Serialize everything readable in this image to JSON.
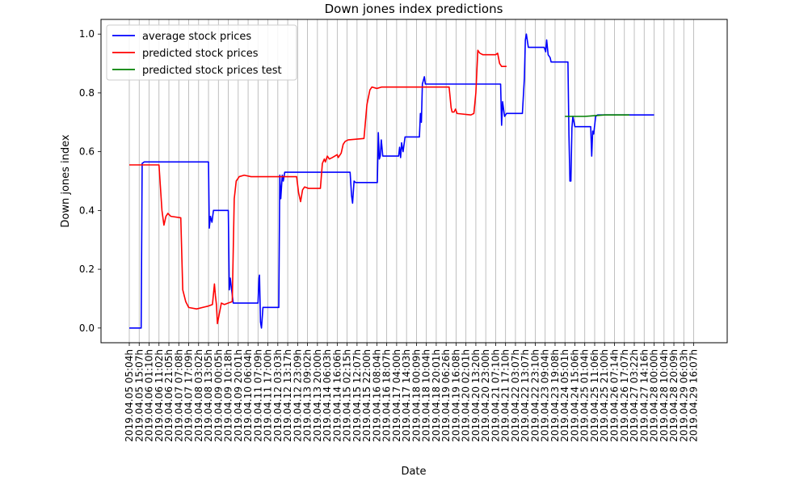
{
  "chart_data": {
    "type": "line",
    "title": "Down jones index predictions",
    "xlabel": "Date",
    "ylabel": "Down jones index",
    "ylim": [
      -0.05,
      1.05
    ],
    "yticks": [
      "0.0",
      "0.2",
      "0.4",
      "0.6",
      "0.8",
      "1.0"
    ],
    "ytick_values": [
      0.0,
      0.2,
      0.4,
      0.6,
      0.8,
      1.0
    ],
    "grid": "vertical",
    "legend_position": "top-left",
    "x_tick_labels": [
      "2019.04.05 05:04h",
      "2019.04.05 15:07h",
      "2019.04.06 01:10h",
      "2019.04.06 11:02h",
      "2019.04.06 21:05h",
      "2019.04.07 07:08h",
      "2019.04.07 17:09h",
      "2019.04.08 03:02h",
      "2019.04.08 13:05h",
      "2019.04.09 00:05h",
      "2019.04.09 10:18h",
      "2019.04.09 20:01h",
      "2019.04.10 06:04h",
      "2019.04.11 07:09h",
      "2019.04.11 17:00h",
      "2019.04.12 03:03h",
      "2019.04.12 13:17h",
      "2019.04.12 23:09h",
      "2019.04.13 09:02h",
      "2019.04.13 20:00h",
      "2019.04.14 06:03h",
      "2019.04.14 16:06h",
      "2019.04.15 02:15h",
      "2019.04.15 12:07h",
      "2019.04.15 22:00h",
      "2019.04.16 08:04h",
      "2019.04.16 18:07h",
      "2019.04.17 04:00h",
      "2019.04.17 14:03h",
      "2019.04.18 00:09h",
      "2019.04.18 10:04h",
      "2019.04.18 20:01h",
      "2019.04.19 06:26h",
      "2019.04.19 16:08h",
      "2019.04.20 02:01h",
      "2019.04.20 13:20h",
      "2019.04.20 23:00h",
      "2019.04.21 07:10h",
      "2019.04.21 17:10h",
      "2019.04.22 03:07h",
      "2019.04.22 13:07h",
      "2019.04.22 23:10h",
      "2019.04.23 09:04h",
      "2019.04.23 19:08h",
      "2019.04.24 05:01h",
      "2019.04.24 15:06h",
      "2019.04.25 01:04h",
      "2019.04.25 11:06h",
      "2019.04.25 21:00h",
      "2019.04.26 07:14h",
      "2019.04.26 17:07h",
      "2019.04.27 03:22h",
      "2019.04.27 14:16h",
      "2019.04.28 00:00h",
      "2019.04.28 10:04h",
      "2019.04.28 20:09h",
      "2019.04.29 06:03h",
      "2019.04.29 16:07h"
    ],
    "series": [
      {
        "name": "average stock prices",
        "color": "#0000ff",
        "points": [
          [
            0,
            0.0
          ],
          [
            1.2,
            0.0
          ],
          [
            1.3,
            0.56
          ],
          [
            1.5,
            0.565
          ],
          [
            2,
            0.565
          ],
          [
            8,
            0.565
          ],
          [
            8.08,
            0.34
          ],
          [
            8.2,
            0.38
          ],
          [
            8.35,
            0.36
          ],
          [
            8.5,
            0.4
          ],
          [
            10,
            0.4
          ],
          [
            10.1,
            0.13
          ],
          [
            10.2,
            0.17
          ],
          [
            10.3,
            0.14
          ],
          [
            10.5,
            0.085
          ],
          [
            13,
            0.085
          ],
          [
            13.1,
            0.17
          ],
          [
            13.15,
            0.18
          ],
          [
            13.25,
            0.02
          ],
          [
            13.35,
            0.0
          ],
          [
            13.5,
            0.07
          ],
          [
            15.1,
            0.07
          ],
          [
            15.2,
            0.52
          ],
          [
            15.3,
            0.44
          ],
          [
            15.45,
            0.52
          ],
          [
            15.55,
            0.5
          ],
          [
            15.7,
            0.53
          ],
          [
            22.3,
            0.53
          ],
          [
            22.45,
            0.45
          ],
          [
            22.55,
            0.425
          ],
          [
            22.7,
            0.5
          ],
          [
            22.85,
            0.495
          ],
          [
            25.05,
            0.495
          ],
          [
            25.15,
            0.665
          ],
          [
            25.25,
            0.575
          ],
          [
            25.35,
            0.585
          ],
          [
            25.45,
            0.64
          ],
          [
            25.6,
            0.585
          ],
          [
            27.2,
            0.585
          ],
          [
            27.3,
            0.615
          ],
          [
            27.4,
            0.58
          ],
          [
            27.5,
            0.63
          ],
          [
            27.65,
            0.6
          ],
          [
            27.85,
            0.65
          ],
          [
            29.3,
            0.65
          ],
          [
            29.4,
            0.73
          ],
          [
            29.5,
            0.7
          ],
          [
            29.6,
            0.83
          ],
          [
            29.8,
            0.855
          ],
          [
            29.9,
            0.83
          ],
          [
            37.5,
            0.83
          ],
          [
            37.6,
            0.69
          ],
          [
            37.7,
            0.77
          ],
          [
            37.9,
            0.72
          ],
          [
            38.1,
            0.73
          ],
          [
            39.7,
            0.73
          ],
          [
            39.9,
            0.85
          ],
          [
            40.0,
            0.98
          ],
          [
            40.1,
            1.0
          ],
          [
            40.3,
            0.955
          ],
          [
            41.9,
            0.955
          ],
          [
            42.05,
            0.94
          ],
          [
            42.15,
            0.98
          ],
          [
            42.3,
            0.93
          ],
          [
            42.5,
            0.92
          ],
          [
            42.6,
            0.905
          ],
          [
            44.3,
            0.905
          ],
          [
            44.4,
            0.66
          ],
          [
            44.5,
            0.5
          ],
          [
            44.6,
            0.5
          ],
          [
            44.7,
            0.68
          ],
          [
            44.8,
            0.72
          ],
          [
            45.0,
            0.685
          ],
          [
            46.6,
            0.685
          ],
          [
            46.7,
            0.585
          ],
          [
            46.8,
            0.67
          ],
          [
            46.9,
            0.66
          ],
          [
            47.1,
            0.72
          ],
          [
            47.3,
            0.725
          ],
          [
            53.0,
            0.725
          ]
        ]
      },
      {
        "name": "predicted stock prices",
        "color": "#ff0000",
        "points": [
          [
            0,
            0.555
          ],
          [
            3,
            0.555
          ],
          [
            3.3,
            0.4
          ],
          [
            3.5,
            0.35
          ],
          [
            3.7,
            0.38
          ],
          [
            3.9,
            0.39
          ],
          [
            4.2,
            0.38
          ],
          [
            5.2,
            0.375
          ],
          [
            5.4,
            0.13
          ],
          [
            5.7,
            0.09
          ],
          [
            6.0,
            0.07
          ],
          [
            6.8,
            0.065
          ],
          [
            8.0,
            0.075
          ],
          [
            8.4,
            0.08
          ],
          [
            8.6,
            0.15
          ],
          [
            8.7,
            0.11
          ],
          [
            8.8,
            0.08
          ],
          [
            8.9,
            0.015
          ],
          [
            9.1,
            0.05
          ],
          [
            9.3,
            0.085
          ],
          [
            9.6,
            0.08
          ],
          [
            10.0,
            0.085
          ],
          [
            10.4,
            0.09
          ],
          [
            10.6,
            0.44
          ],
          [
            10.8,
            0.5
          ],
          [
            11.1,
            0.515
          ],
          [
            11.6,
            0.52
          ],
          [
            12.3,
            0.515
          ],
          [
            15.5,
            0.515
          ],
          [
            16.9,
            0.515
          ],
          [
            17.1,
            0.46
          ],
          [
            17.3,
            0.43
          ],
          [
            17.5,
            0.47
          ],
          [
            17.7,
            0.48
          ],
          [
            18.1,
            0.475
          ],
          [
            19.3,
            0.475
          ],
          [
            19.5,
            0.56
          ],
          [
            19.7,
            0.575
          ],
          [
            19.8,
            0.565
          ],
          [
            20.0,
            0.585
          ],
          [
            20.2,
            0.575
          ],
          [
            20.5,
            0.58
          ],
          [
            21.0,
            0.59
          ],
          [
            21.1,
            0.58
          ],
          [
            21.4,
            0.595
          ],
          [
            21.6,
            0.625
          ],
          [
            21.8,
            0.635
          ],
          [
            22.1,
            0.64
          ],
          [
            23.7,
            0.645
          ],
          [
            24.0,
            0.76
          ],
          [
            24.3,
            0.81
          ],
          [
            24.5,
            0.82
          ],
          [
            25.0,
            0.815
          ],
          [
            25.5,
            0.82
          ],
          [
            27.5,
            0.82
          ],
          [
            32.3,
            0.82
          ],
          [
            32.5,
            0.75
          ],
          [
            32.6,
            0.735
          ],
          [
            32.8,
            0.735
          ],
          [
            32.95,
            0.745
          ],
          [
            33.1,
            0.73
          ],
          [
            34.5,
            0.725
          ],
          [
            34.8,
            0.73
          ],
          [
            35.0,
            0.8
          ],
          [
            35.2,
            0.945
          ],
          [
            35.4,
            0.935
          ],
          [
            35.7,
            0.93
          ],
          [
            37.0,
            0.93
          ],
          [
            37.2,
            0.935
          ],
          [
            37.4,
            0.9
          ],
          [
            37.6,
            0.89
          ],
          [
            38.1,
            0.89
          ]
        ]
      },
      {
        "name": "predicted stock prices test",
        "color": "#008000",
        "points": [
          [
            44.0,
            0.72
          ],
          [
            46.0,
            0.72
          ],
          [
            48.0,
            0.725
          ],
          [
            50.5,
            0.725
          ]
        ]
      }
    ]
  }
}
